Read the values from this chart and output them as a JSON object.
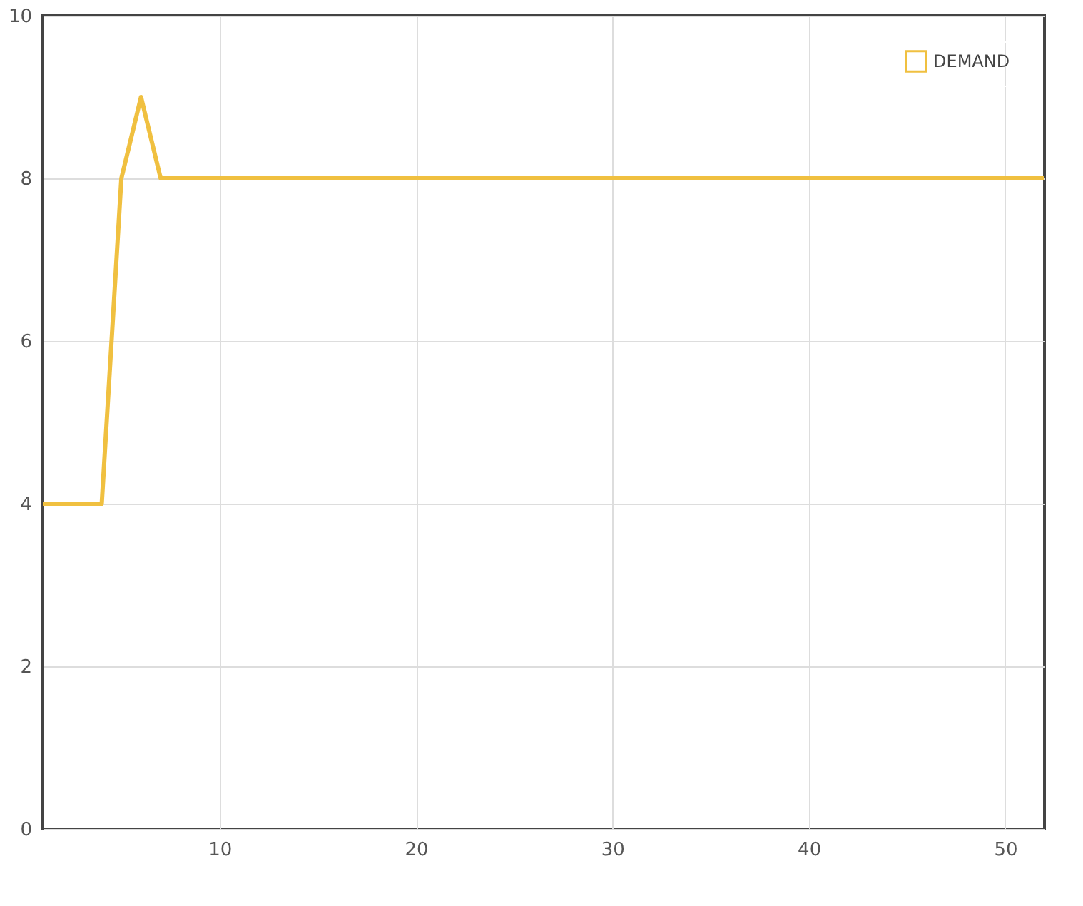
{
  "chart_data": {
    "type": "line",
    "x": [
      1,
      2,
      3,
      4,
      5,
      6,
      7,
      8,
      9,
      10,
      11,
      12,
      13,
      14,
      15,
      16,
      17,
      18,
      19,
      20,
      21,
      22,
      23,
      24,
      25,
      26,
      27,
      28,
      29,
      30,
      31,
      32,
      33,
      34,
      35,
      36,
      37,
      38,
      39,
      40,
      41,
      42,
      43,
      44,
      45,
      46,
      47,
      48,
      49,
      50,
      51,
      52
    ],
    "series": [
      {
        "name": "DEMAND",
        "color": "#f0c040",
        "values": [
          4,
          4,
          4,
          4,
          8,
          9,
          8,
          8,
          8,
          8,
          8,
          8,
          8,
          8,
          8,
          8,
          8,
          8,
          8,
          8,
          8,
          8,
          8,
          8,
          8,
          8,
          8,
          8,
          8,
          8,
          8,
          8,
          8,
          8,
          8,
          8,
          8,
          8,
          8,
          8,
          8,
          8,
          8,
          8,
          8,
          8,
          8,
          8,
          8,
          8,
          8,
          8
        ]
      }
    ],
    "xlim": [
      1,
      52
    ],
    "xticks": [
      10,
      20,
      30,
      40,
      50
    ],
    "ylim": [
      0,
      10
    ],
    "yticks": [
      0,
      2,
      4,
      6,
      8,
      10
    ],
    "grid": true,
    "legend": "top right",
    "marker": "none",
    "line_style": "solid"
  }
}
